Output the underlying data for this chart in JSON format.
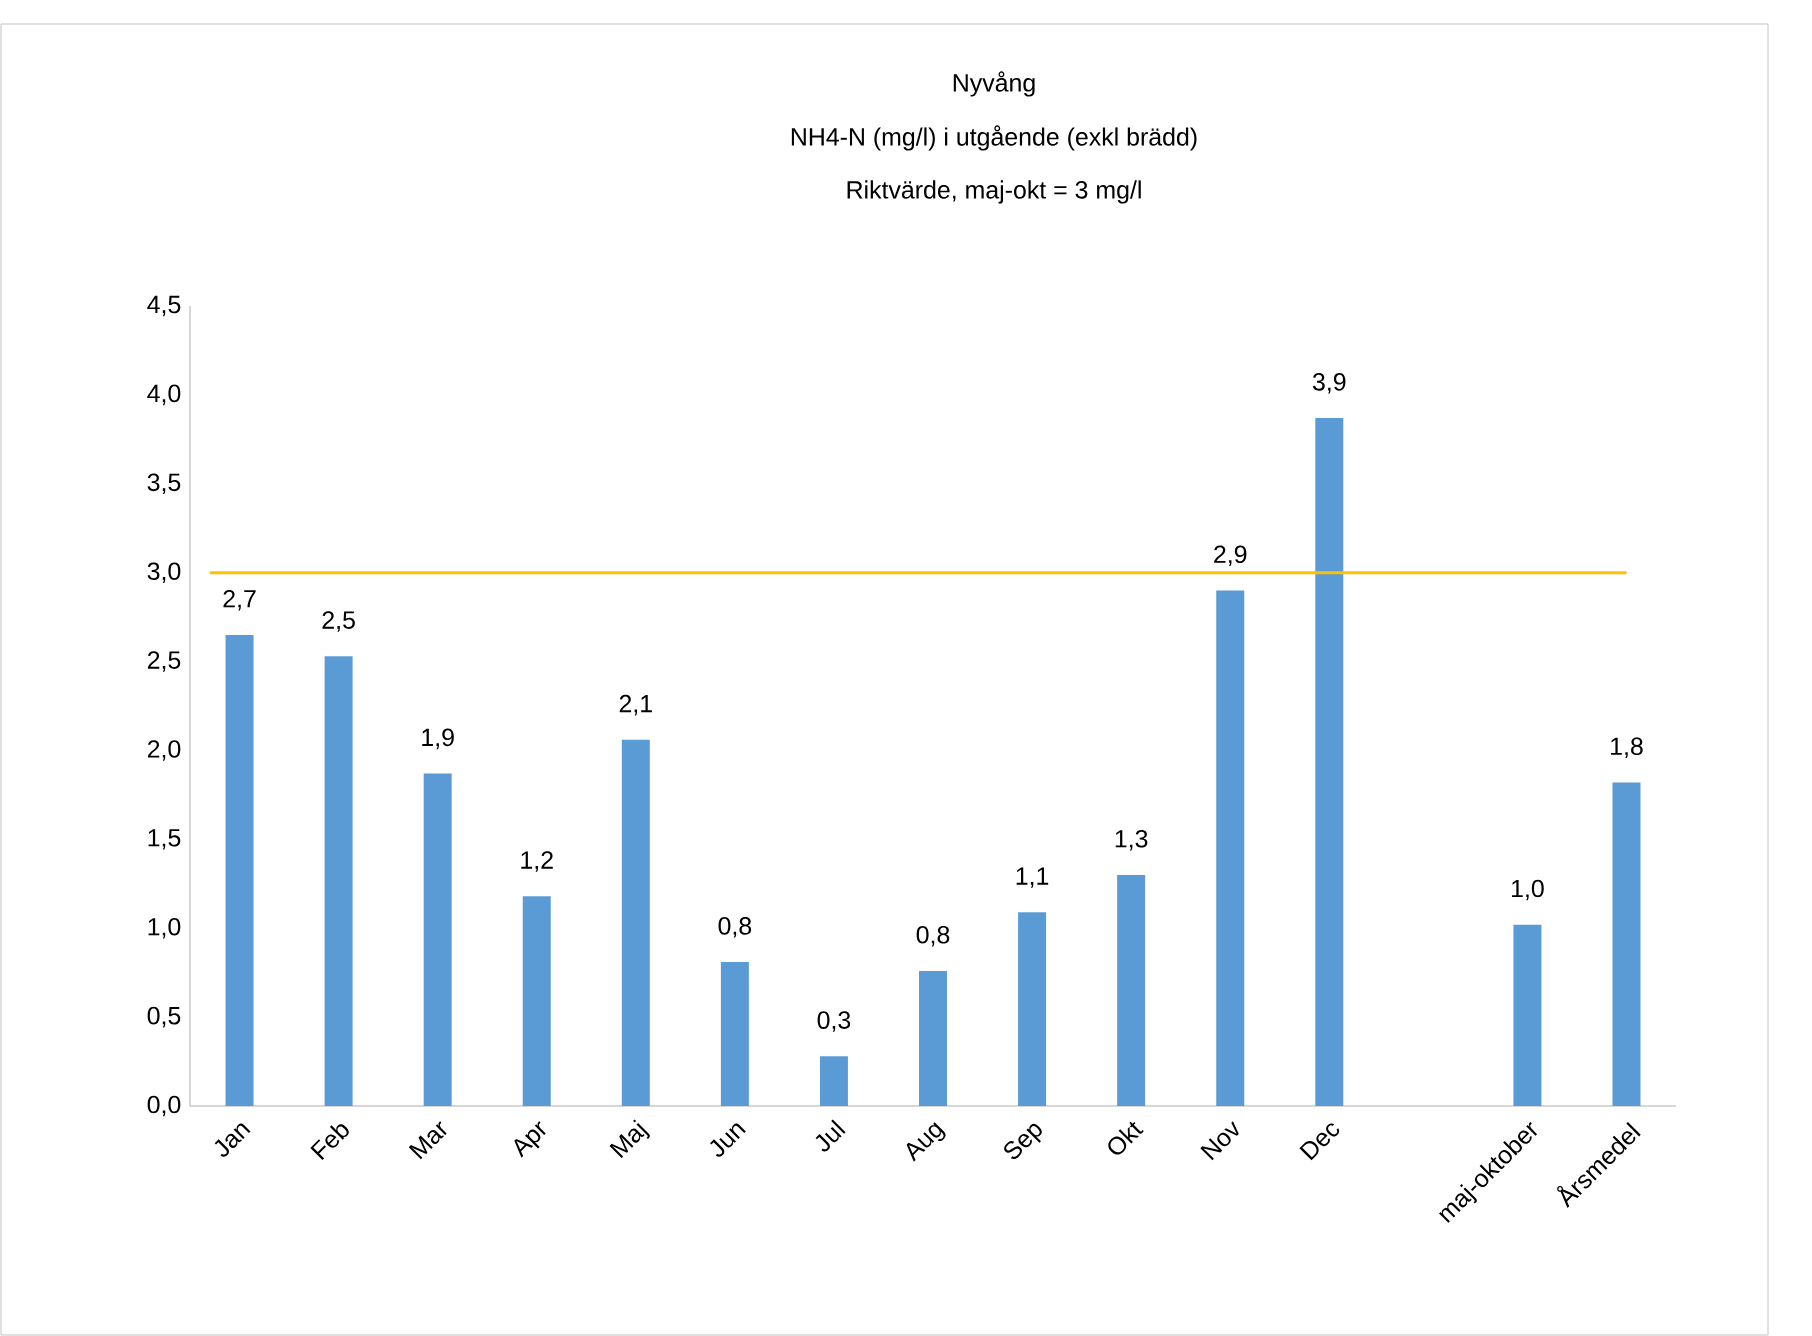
{
  "chart_data": {
    "type": "bar",
    "title": "Nyvång",
    "subtitle": "NH4-N (mg/l) i utgående (exkl brädd)",
    "annotations": [
      "Riktvärde, maj-okt = 3 mg/l"
    ],
    "categories": [
      "Jan",
      "Feb",
      "Mar",
      "Apr",
      "Maj",
      "Jun",
      "Jul",
      "Aug",
      "Sep",
      "Okt",
      "Nov",
      "Dec",
      null,
      "maj-oktober",
      "Årsmedel"
    ],
    "values": [
      2.65,
      2.53,
      1.87,
      1.18,
      2.06,
      0.81,
      0.28,
      0.76,
      1.09,
      1.3,
      2.9,
      3.87,
      null,
      1.02,
      1.82
    ],
    "value_labels": [
      "2,7",
      "2,5",
      "1,9",
      "1,2",
      "2,1",
      "0,8",
      "0,3",
      "0,8",
      "1,1",
      "1,3",
      "2,9",
      "3,9",
      null,
      "1,0",
      "1,8"
    ],
    "color": "#5b9bd5",
    "ylim": [
      0,
      4.5
    ],
    "yticks": [
      {
        "value": 0,
        "label": "0,0"
      },
      {
        "value": 0.5,
        "label": "0,5"
      },
      {
        "value": 1,
        "label": "1,0"
      },
      {
        "value": 1.5,
        "label": "1,5"
      },
      {
        "value": 2,
        "label": "2,0"
      },
      {
        "value": 2.5,
        "label": "2,5"
      },
      {
        "value": 3,
        "label": "3,0"
      },
      {
        "value": 3.5,
        "label": "3,5"
      },
      {
        "value": 4,
        "label": "4,0"
      },
      {
        "value": 4.5,
        "label": "4,5"
      }
    ],
    "ref_lines": [
      {
        "axis": "y",
        "value": 3,
        "color": "#ffc000"
      }
    ]
  }
}
